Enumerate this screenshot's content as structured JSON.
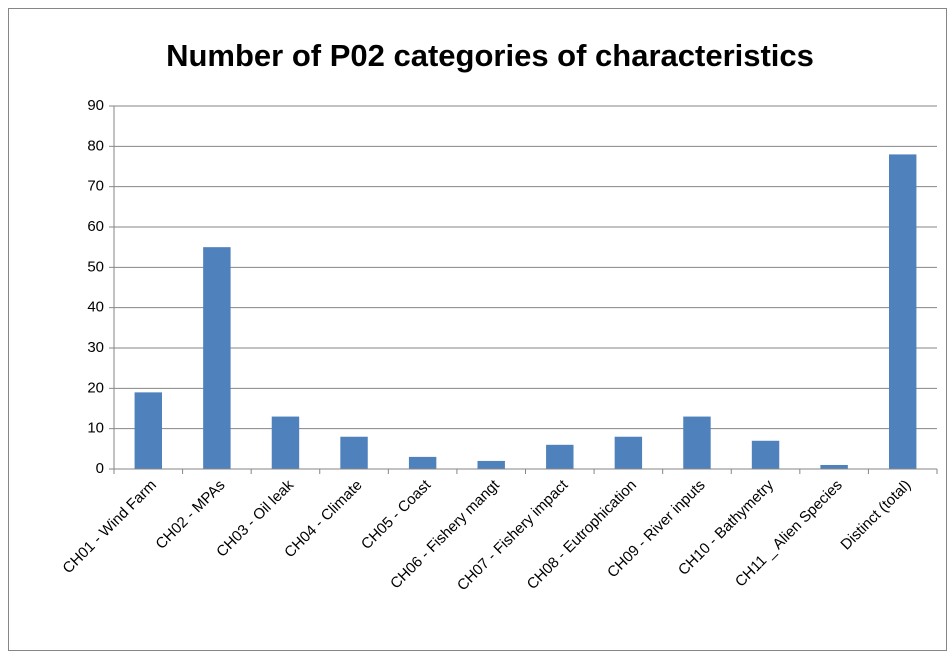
{
  "chart_data": {
    "type": "bar",
    "title": "Number of P02 categories of characteristics",
    "categories": [
      "CH01 - Wind Farm",
      "CH02 - MPAs",
      "CH03 - Oil leak",
      "CH04 - Climate",
      "CH05 - Coast",
      "CH06 - Fishery mangt",
      "CH07 - Fishery impact",
      "CH08 - Eutrophication",
      "CH09 - River inputs",
      "CH10 - Bathymetry",
      "CH11 _ Alien Species",
      "Distinct (total)"
    ],
    "values": [
      19,
      55,
      13,
      8,
      3,
      2,
      6,
      8,
      13,
      7,
      1,
      78
    ],
    "color": "#4f81bd",
    "ylim": [
      0,
      90
    ],
    "yticks": [
      0,
      10,
      20,
      30,
      40,
      50,
      60,
      70,
      80,
      90
    ],
    "grid": true
  }
}
